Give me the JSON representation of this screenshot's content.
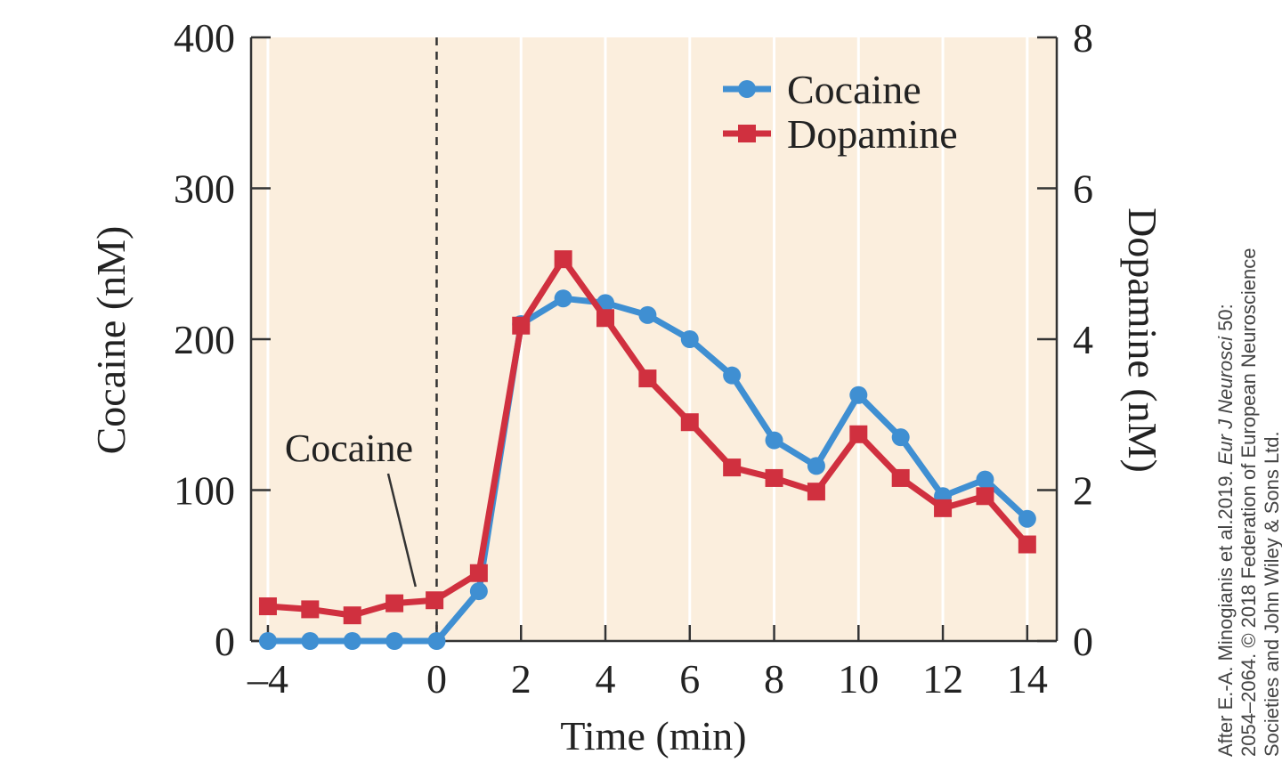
{
  "chart_data": {
    "type": "line",
    "xlabel": "Time (min)",
    "ylabel_left": "Cocaine (nM)",
    "ylabel_right": "Dopamine (nM)",
    "xlim": [
      -4.4,
      14.7
    ],
    "ylim_left": [
      0,
      400
    ],
    "ylim_right": [
      0,
      8
    ],
    "x_ticks": [
      -4,
      0,
      2,
      4,
      6,
      8,
      10,
      12,
      14
    ],
    "x_tick_labels": [
      "–4",
      "0",
      "2",
      "4",
      "6",
      "8",
      "10",
      "12",
      "14"
    ],
    "y_left_ticks": [
      0,
      100,
      200,
      300,
      400
    ],
    "y_left_tick_labels": [
      "0",
      "100",
      "200",
      "300",
      "400"
    ],
    "y_right_ticks": [
      0,
      2,
      4,
      6,
      8
    ],
    "y_right_tick_labels": [
      "0",
      "2",
      "4",
      "6",
      "8"
    ],
    "grid": "vertical",
    "legend_position": "top-right",
    "injection_marker_x": 0,
    "annotation": {
      "text": "Cocaine",
      "x": -0.5,
      "y": 36
    },
    "background_color": "#fbeedd",
    "series": [
      {
        "name": "Cocaine",
        "axis": "left",
        "color": "#3f8fd2",
        "marker": "circle",
        "x": [
          -4,
          -3,
          -2,
          -1,
          0,
          1,
          2,
          3,
          4,
          5,
          6,
          7,
          8,
          9,
          10,
          11,
          12,
          13,
          14
        ],
        "values": [
          0,
          0,
          0,
          0,
          0,
          33,
          210,
          227,
          224,
          216,
          200,
          176,
          133,
          116,
          163,
          135,
          96,
          107,
          81
        ]
      },
      {
        "name": "Dopamine",
        "axis": "right",
        "color": "#d0303f",
        "marker": "square",
        "x": [
          -4,
          -3,
          -2,
          -1,
          -0.05,
          1,
          2,
          3,
          4,
          5,
          6,
          7,
          8,
          9,
          10,
          11,
          12,
          13,
          14
        ],
        "values": [
          0.46,
          0.42,
          0.34,
          0.5,
          0.54,
          0.9,
          4.18,
          5.06,
          4.28,
          3.48,
          2.9,
          2.3,
          2.16,
          1.98,
          2.74,
          2.16,
          1.76,
          1.92,
          1.28
        ]
      }
    ]
  },
  "credit": {
    "line1_before": "After E.-A. Minogianis et al.2019. ",
    "line1_italic": "Eur J Neurosci",
    "line1_after": " 50:",
    "line2": "2054–2064. © 2018 Federation of European Neuroscience",
    "line3": "Societies and John Wiley & Sons Ltd."
  }
}
